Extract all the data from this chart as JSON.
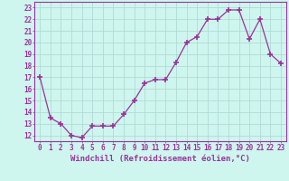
{
  "x": [
    0,
    1,
    2,
    3,
    4,
    5,
    6,
    7,
    8,
    9,
    10,
    11,
    12,
    13,
    14,
    15,
    16,
    17,
    18,
    19,
    20,
    21,
    22,
    23
  ],
  "y": [
    17.0,
    13.5,
    13.0,
    12.0,
    11.8,
    12.8,
    12.8,
    12.8,
    13.8,
    15.0,
    16.5,
    16.8,
    16.8,
    18.3,
    20.0,
    20.5,
    22.0,
    22.0,
    22.8,
    22.8,
    20.3,
    22.0,
    19.0,
    18.2
  ],
  "line_color": "#993399",
  "marker": "+",
  "marker_size": 4,
  "marker_linewidth": 1.2,
  "bg_color": "#cef5ee",
  "grid_color": "#aad8d0",
  "xlabel": "Windchill (Refroidissement éolien,°C)",
  "xlabel_fontsize": 6.5,
  "tick_fontsize": 5.5,
  "ylim": [
    11.5,
    23.5
  ],
  "xlim": [
    -0.5,
    23.5
  ],
  "yticks": [
    12,
    13,
    14,
    15,
    16,
    17,
    18,
    19,
    20,
    21,
    22,
    23
  ]
}
